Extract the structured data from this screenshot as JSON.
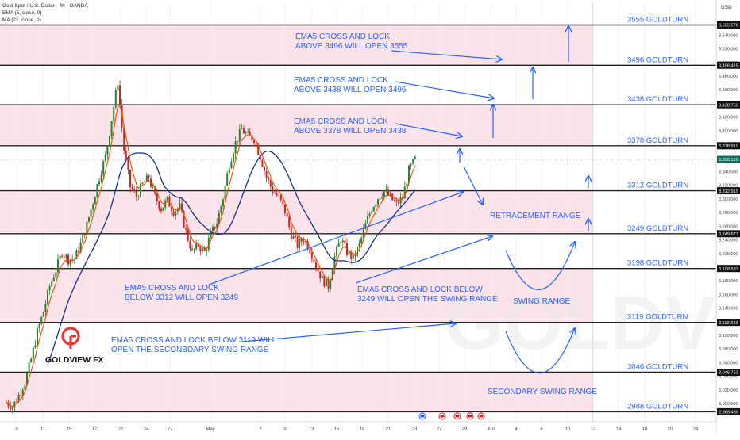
{
  "header": {
    "symbol_line": "Gold Spot / U.S. Dollar · 4h · OANDA",
    "ema_line": "EMA (5, close, 0)",
    "ma_line": "MA (21, close, 0)",
    "currency": "USD"
  },
  "logo": {
    "name": "GOLDVIEW FX",
    "watermark": "GOLDVIEW F"
  },
  "colors": {
    "band": "#fbe3e9",
    "note": "#2962ff",
    "ema": "#e65100",
    "ma": "#1a2f8a",
    "candle_up": "#2e7d32",
    "candle_down": "#c62828",
    "logo_red": "#e53935"
  },
  "chart_data": {
    "type": "candlestick",
    "symbol": "XAUUSD",
    "timeframe": "4h",
    "ylim": [
      2980,
      3570
    ],
    "x_ticks": [
      "9",
      "11",
      "15",
      "17",
      "22",
      "24",
      "27",
      "May",
      "7",
      "9",
      "13",
      "15",
      "18",
      "21",
      "23",
      "27",
      "29",
      "Jun",
      "4",
      "6",
      "10",
      "12",
      "14",
      "18",
      "20",
      "24"
    ],
    "y_ticks": [
      3000,
      3020,
      3040,
      3060,
      3080,
      3100,
      3120,
      3140,
      3160,
      3180,
      3200,
      3220,
      3240,
      3260,
      3280,
      3300,
      3320,
      3340,
      3360,
      3380,
      3400,
      3420,
      3440,
      3460,
      3480,
      3500,
      3520,
      3540
    ],
    "price_path": [
      [
        0,
        3002
      ],
      [
        3,
        2995
      ],
      [
        6,
        3012
      ],
      [
        9,
        3032
      ],
      [
        12,
        3065
      ],
      [
        15,
        3105
      ],
      [
        18,
        3135
      ],
      [
        21,
        3172
      ],
      [
        24,
        3196
      ],
      [
        27,
        3222
      ],
      [
        30,
        3211
      ],
      [
        33,
        3212
      ],
      [
        36,
        3234
      ],
      [
        39,
        3262
      ],
      [
        42,
        3296
      ],
      [
        45,
        3332
      ],
      [
        48,
        3362
      ],
      [
        51,
        3417
      ],
      [
        54,
        3472
      ],
      [
        57,
        3372
      ],
      [
        60,
        3318
      ],
      [
        63,
        3303
      ],
      [
        66,
        3322
      ],
      [
        69,
        3331
      ],
      [
        72,
        3303
      ],
      [
        75,
        3286
      ],
      [
        78,
        3298
      ],
      [
        81,
        3282
      ],
      [
        84,
        3288
      ],
      [
        87,
        3252
      ],
      [
        90,
        3222
      ],
      [
        93,
        3232
      ],
      [
        96,
        3222
      ],
      [
        99,
        3248
      ],
      [
        102,
        3266
      ],
      [
        105,
        3302
      ],
      [
        108,
        3352
      ],
      [
        111,
        3382
      ],
      [
        114,
        3402
      ],
      [
        117,
        3392
      ],
      [
        120,
        3388
      ],
      [
        123,
        3362
      ],
      [
        126,
        3332
      ],
      [
        129,
        3312
      ],
      [
        132,
        3302
      ],
      [
        135,
        3282
      ],
      [
        138,
        3248
      ],
      [
        141,
        3232
      ],
      [
        144,
        3242
      ],
      [
        147,
        3227
      ],
      [
        150,
        3202
      ],
      [
        153,
        3182
      ],
      [
        156,
        3172
      ],
      [
        159,
        3215
      ],
      [
        162,
        3242
      ],
      [
        165,
        3222
      ],
      [
        168,
        3212
      ],
      [
        171,
        3232
      ],
      [
        174,
        3262
      ],
      [
        177,
        3287
      ],
      [
        180,
        3302
      ],
      [
        183,
        3312
      ],
      [
        186,
        3302
      ],
      [
        189,
        3292
      ],
      [
        192,
        3302
      ],
      [
        195,
        3342
      ],
      [
        198,
        3358
      ]
    ],
    "ema5_label": "EMA5",
    "ma21_label": "MA21",
    "levels": [
      {
        "price": 3555,
        "label": "3555 GOLDTURN",
        "price_tag": "3,555.576"
      },
      {
        "price": 3496,
        "label": "3496 GOLDTURN",
        "price_tag": "3,496.415"
      },
      {
        "price": 3438,
        "label": "3438 GOLDTURN",
        "price_tag": "3,438.753"
      },
      {
        "price": 3378,
        "label": "3378 GOLDTURN",
        "price_tag": "3,378.911"
      },
      {
        "price": 3312,
        "label": "3312 GOLDTURN",
        "price_tag": "3,312.919"
      },
      {
        "price": 3249,
        "label": "3249 GOLDTURN",
        "price_tag": "3,249.677"
      },
      {
        "price": 3198,
        "label": "3198 GOLDTURN",
        "price_tag": "3,198.533"
      },
      {
        "price": 3119,
        "label": "3119 GOLDTURN",
        "price_tag": "3,119.343"
      },
      {
        "price": 3046,
        "label": "3046 GOLDTURN",
        "price_tag": "3,046.752"
      },
      {
        "price": 2988,
        "label": "2988 GOLDTURN",
        "price_tag": "2,988.459"
      }
    ],
    "current_price": {
      "price": 3358,
      "price_tag": "3,358.125"
    },
    "shaded_zones": [
      [
        3496,
        3555
      ],
      [
        3378,
        3438
      ],
      [
        3249,
        3312
      ],
      [
        3119,
        3198
      ],
      [
        2988,
        3046
      ]
    ],
    "annotations": [
      {
        "lines": [
          "EMA5 CROSS AND LOCK",
          "ABOVE 3496 WILL OPEN 3555"
        ]
      },
      {
        "lines": [
          "EMA5 CROSS AND LOCK",
          "ABOVE 3438 WILL OPEN 3496"
        ]
      },
      {
        "lines": [
          "EMA5 CROSS AND LOCK",
          "ABOVE 3378 WILL OPEN 3438"
        ]
      },
      {
        "lines": [
          "EMA5 CROSS AND LOCK",
          "BELOW 3312 WILL OPEN 3249"
        ]
      },
      {
        "lines": [
          "EMA5 CROSS AND LOCK BELOW",
          "3249 WILL OPEN THE SWING RANGE"
        ]
      },
      {
        "lines": [
          "EMA5 CROSS AND LOCK BELOW 3119 WILL",
          "OPEN THE SECONBDARY SWING RANGE"
        ]
      },
      {
        "lines": [
          "RETRACEMENT RANGE"
        ]
      },
      {
        "lines": [
          "SWING RANGE"
        ]
      },
      {
        "lines": [
          "SECONDARY SWING RANGE"
        ]
      }
    ]
  }
}
